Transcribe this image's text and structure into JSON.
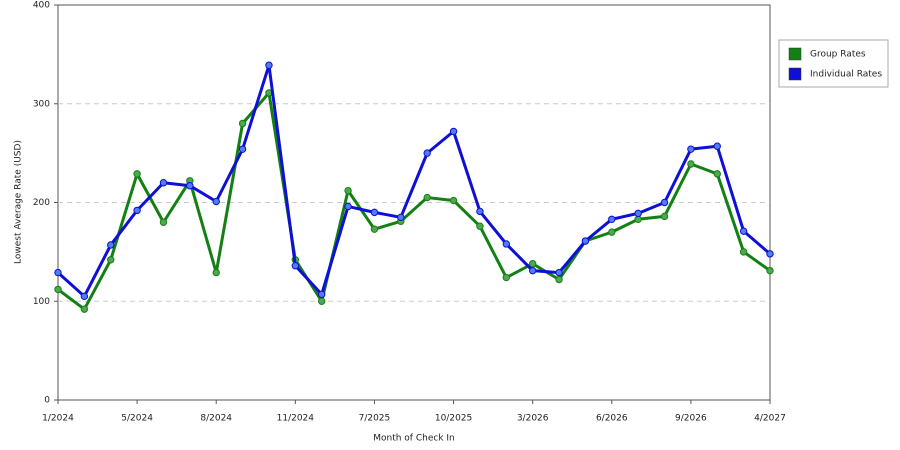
{
  "chart_data": {
    "type": "line",
    "x_label": "Month of Check In",
    "y_label": "Lowest Average Rate (USD)",
    "categories": [
      "1/2024",
      null,
      null,
      "5/2024",
      null,
      null,
      "8/2024",
      null,
      null,
      "11/2024",
      null,
      null,
      "7/2025",
      null,
      null,
      "10/2025",
      null,
      null,
      "3/2026",
      null,
      null,
      "6/2026",
      null,
      null,
      "9/2026",
      null,
      null,
      "4/2027"
    ],
    "series": [
      {
        "name": "Group Rates",
        "color": "#138013",
        "marker_color": "#4fa84f",
        "values": [
          112,
          92,
          142,
          229,
          180,
          222,
          129,
          280,
          311,
          142,
          100,
          212,
          173,
          181,
          205,
          202,
          176,
          124,
          138,
          122,
          161,
          170,
          183,
          186,
          239,
          229,
          150,
          131
        ]
      },
      {
        "name": "Individual Rates",
        "color": "#0f0fd6",
        "marker_color": "#4f7fef",
        "values": [
          129,
          105,
          157,
          192,
          220,
          217,
          201,
          254,
          339,
          136,
          107,
          196,
          190,
          185,
          250,
          272,
          191,
          158,
          131,
          129,
          161,
          183,
          189,
          200,
          254,
          257,
          171,
          148
        ]
      }
    ],
    "ylim": [
      0,
      400
    ],
    "yticks": [
      0,
      100,
      200,
      300,
      400
    ],
    "grid": true,
    "legend": "right"
  }
}
